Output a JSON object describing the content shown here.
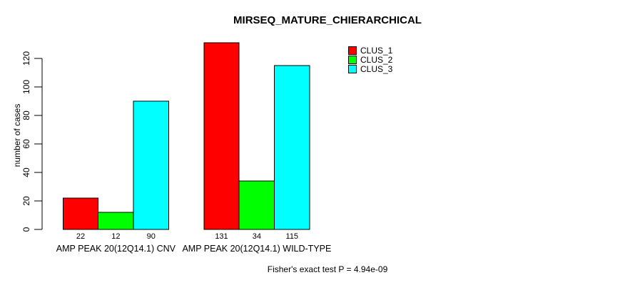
{
  "chart_data": {
    "type": "bar",
    "title": "MIRSEQ_MATURE_CHIERARCHICAL",
    "ylabel": "number of cases",
    "xlabel": "",
    "footnote": "Fisher's exact test P = 4.94e-09",
    "categories": [
      "AMP PEAK 20(12Q14.1) CNV",
      "AMP PEAK 20(12Q14.1) WILD-TYPE"
    ],
    "series": [
      {
        "name": "CLUS_1",
        "color": "#ff0000",
        "values": [
          22,
          131
        ]
      },
      {
        "name": "CLUS_2",
        "color": "#00ff00",
        "values": [
          12,
          34
        ]
      },
      {
        "name": "CLUS_3",
        "color": "#00ffff",
        "values": [
          90,
          115
        ]
      }
    ],
    "yticks": [
      0,
      20,
      40,
      60,
      80,
      100,
      120
    ],
    "ylim": [
      0,
      131
    ],
    "grid": false,
    "legend_position": "top-right",
    "bar_value_labels": true,
    "axis_color": "#000000"
  }
}
